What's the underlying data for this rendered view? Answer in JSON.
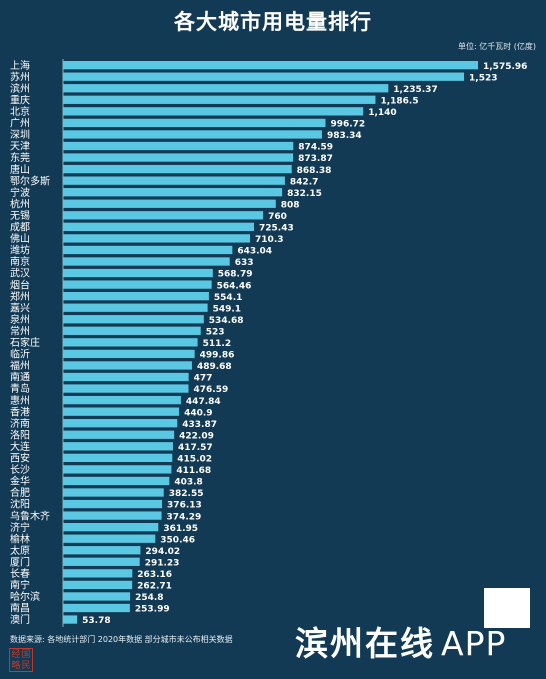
{
  "title": "各大城市用电量排行",
  "unit": "单位: 亿千瓦时 (亿度)",
  "source": "数据来源: 各地统计部门  2020年数据  部分城市未公布相关数据",
  "stamp_text": [
    "经",
    "国",
    "略",
    "民"
  ],
  "watermark": {
    "main": "滨州在线",
    "app": "APP"
  },
  "colors": {
    "background": "#123a55",
    "bar": "#5ac8e2",
    "text": "#ffffff"
  },
  "chart_data": {
    "type": "bar",
    "orientation": "horizontal",
    "title": "各大城市用电量排行",
    "unit": "亿千瓦时 (亿度)",
    "categories": [
      "上海",
      "苏州",
      "滨州",
      "重庆",
      "北京",
      "广州",
      "深圳",
      "天津",
      "东莞",
      "唐山",
      "鄂尔多斯",
      "宁波",
      "杭州",
      "无锡",
      "成都",
      "佛山",
      "潍坊",
      "南京",
      "武汉",
      "烟台",
      "郑州",
      "嘉兴",
      "泉州",
      "常州",
      "石家庄",
      "临沂",
      "福州",
      "南通",
      "青岛",
      "惠州",
      "香港",
      "济南",
      "洛阳",
      "大连",
      "西安",
      "长沙",
      "金华",
      "合肥",
      "沈阳",
      "乌鲁木齐",
      "济宁",
      "榆林",
      "太原",
      "厦门",
      "长春",
      "南宁",
      "哈尔滨",
      "南昌",
      "澳门"
    ],
    "values": [
      1575.96,
      1523,
      1235.37,
      1186.5,
      1140,
      996.72,
      983.34,
      874.59,
      873.87,
      868.38,
      842.7,
      832.15,
      808,
      760,
      725.43,
      710.3,
      643.04,
      633,
      568.79,
      564.46,
      554.1,
      549.1,
      534.68,
      523,
      511.2,
      499.86,
      489.68,
      477,
      476.59,
      447.84,
      440.9,
      433.87,
      422.09,
      417.57,
      415.02,
      411.68,
      403.8,
      382.55,
      376.13,
      374.29,
      361.95,
      350.46,
      294.02,
      291.23,
      263.16,
      262.71,
      254.8,
      253.99,
      53.78
    ],
    "labels": [
      "1,575.96",
      "1,523",
      "1,235.37",
      "1,186.5",
      "1,140",
      "996.72",
      "983.34",
      "874.59",
      "873.87",
      "868.38",
      "842.7",
      "832.15",
      "808",
      "760",
      "725.43",
      "710.3",
      "643.04",
      "633",
      "568.79",
      "564.46",
      "554.1",
      "549.1",
      "534.68",
      "523",
      "511.2",
      "499.86",
      "489.68",
      "477",
      "476.59",
      "447.84",
      "440.9",
      "433.87",
      "422.09",
      "417.57",
      "415.02",
      "411.68",
      "403.8",
      "382.55",
      "376.13",
      "374.29",
      "361.95",
      "350.46",
      "294.02",
      "291.23",
      "263.16",
      "262.71",
      "254.8",
      "253.99",
      "53.78"
    ],
    "xlim": [
      0,
      1575.96
    ],
    "grid": false,
    "legend": "none"
  }
}
